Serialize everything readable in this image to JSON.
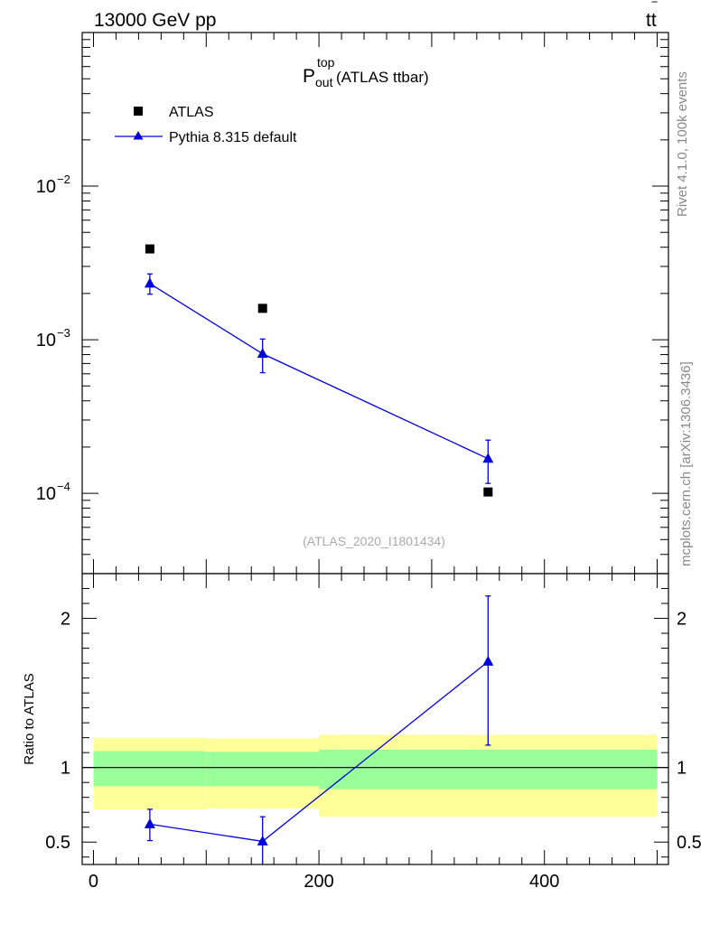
{
  "header": {
    "left": "13000 GeV pp",
    "right_main": "tt",
    "right_bar": "‾"
  },
  "side_labels": {
    "rivet": "Rivet 4.1.0,  100k events",
    "mcplots": "mcplots.cern.ch [arXiv:1306.3436]"
  },
  "title": {
    "main": "P",
    "sup": "top",
    "sub": "out",
    "rest": " (ATLAS ttbar)"
  },
  "watermark": "(ATLAS_2020_I1801434)",
  "legend": [
    {
      "label": "ATLAS",
      "marker": "square",
      "color": "#000000"
    },
    {
      "label": "Pythia 8.315 default",
      "marker": "triangle",
      "color": "#0000dd"
    }
  ],
  "colors": {
    "data": "#000000",
    "mc": "#0000dd",
    "band_inner": "#99ff99",
    "band_outer": "#ffff99"
  },
  "chart_data": [
    {
      "type": "scatter",
      "role": "main",
      "yscale": "log",
      "ylim": [
        3e-05,
        0.1
      ],
      "xlim": [
        -10,
        510
      ],
      "y_ticks": [
        {
          "base": "10",
          "exp": "−2",
          "value": 0.01
        },
        {
          "base": "10",
          "exp": "−3",
          "value": 0.001
        },
        {
          "base": "10",
          "exp": "−4",
          "value": 0.0001
        }
      ],
      "series": [
        {
          "name": "ATLAS",
          "points": [
            {
              "x": 50,
              "y": 0.0039
            },
            {
              "x": 150,
              "y": 0.0016
            },
            {
              "x": 350,
              "y": 0.000102
            }
          ]
        },
        {
          "name": "Pythia 8.315 default",
          "points": [
            {
              "x": 50,
              "y": 0.00232,
              "ylo": 0.00198,
              "yhi": 0.00268
            },
            {
              "x": 150,
              "y": 0.00081,
              "ylo": 0.00061,
              "yhi": 0.00101
            },
            {
              "x": 350,
              "y": 0.000168,
              "ylo": 0.000116,
              "yhi": 0.000222
            }
          ]
        }
      ]
    },
    {
      "type": "scatter",
      "role": "ratio",
      "ylabel": "Ratio to ATLAS",
      "ylim": [
        0.35,
        2.3
      ],
      "xlim": [
        -10,
        510
      ],
      "y_ticks": [
        {
          "label": "2",
          "value": 2
        },
        {
          "label": "1",
          "value": 1
        },
        {
          "label": "0.5",
          "value": 0.5
        }
      ],
      "x_ticks": [
        {
          "label": "0",
          "value": 0
        },
        {
          "label": "200",
          "value": 200
        },
        {
          "label": "400",
          "value": 400
        }
      ],
      "bands": [
        {
          "xlo": 0,
          "xhi": 100,
          "inner": [
            0.875,
            1.11
          ],
          "outer": [
            0.72,
            1.2
          ]
        },
        {
          "xlo": 100,
          "xhi": 200,
          "inner": [
            0.875,
            1.105
          ],
          "outer": [
            0.725,
            1.195
          ]
        },
        {
          "xlo": 200,
          "xhi": 500,
          "inner": [
            0.855,
            1.12
          ],
          "outer": [
            0.67,
            1.22
          ]
        }
      ],
      "series": [
        {
          "name": "Pythia 8.315 default",
          "points": [
            {
              "x": 50,
              "y": 0.62,
              "ylo": 0.51,
              "yhi": 0.72
            },
            {
              "x": 150,
              "y": 0.505,
              "ylo": 0.34,
              "yhi": 0.67
            },
            {
              "x": 350,
              "y": 1.71,
              "ylo": 1.15,
              "yhi": 2.15
            }
          ]
        }
      ]
    }
  ]
}
